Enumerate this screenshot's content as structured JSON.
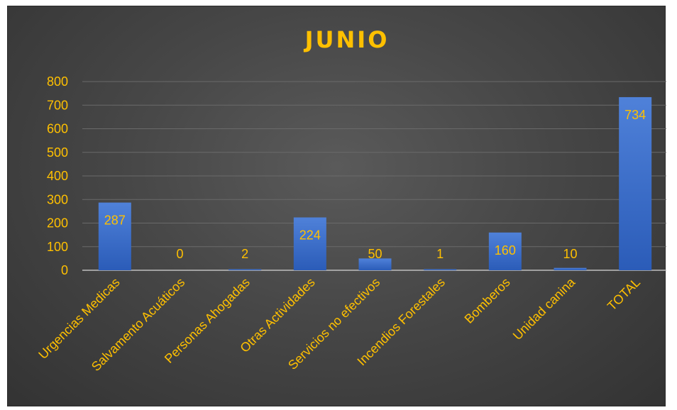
{
  "chart_data": {
    "type": "bar",
    "title": "JUNIO",
    "categories": [
      "Urgencias Medicas",
      "Salvamento Acuáticos",
      "Personas Ahogadas",
      "Otras Actividades",
      "Servicios no efectivos",
      "Incendios Forestales",
      "Bomberos",
      "Unidad canina",
      "TOTAL"
    ],
    "values": [
      287,
      0,
      2,
      224,
      50,
      1,
      160,
      10,
      734
    ],
    "data_labels": [
      "287",
      "0",
      "2",
      "224",
      "50",
      "1",
      "160",
      "10",
      "734"
    ],
    "yticks": [
      "0",
      "100",
      "200",
      "300",
      "400",
      "500",
      "600",
      "700",
      "800"
    ],
    "ylim": [
      0,
      800
    ],
    "xlabel": "",
    "ylabel": "",
    "grid": true,
    "legend": "none"
  },
  "colors": {
    "text": "#FFC000",
    "bar_top": "#4f81d9",
    "bar_bottom": "#2b5cb8",
    "grid": "#6a6a6a",
    "axis": "#bfbfbf"
  }
}
